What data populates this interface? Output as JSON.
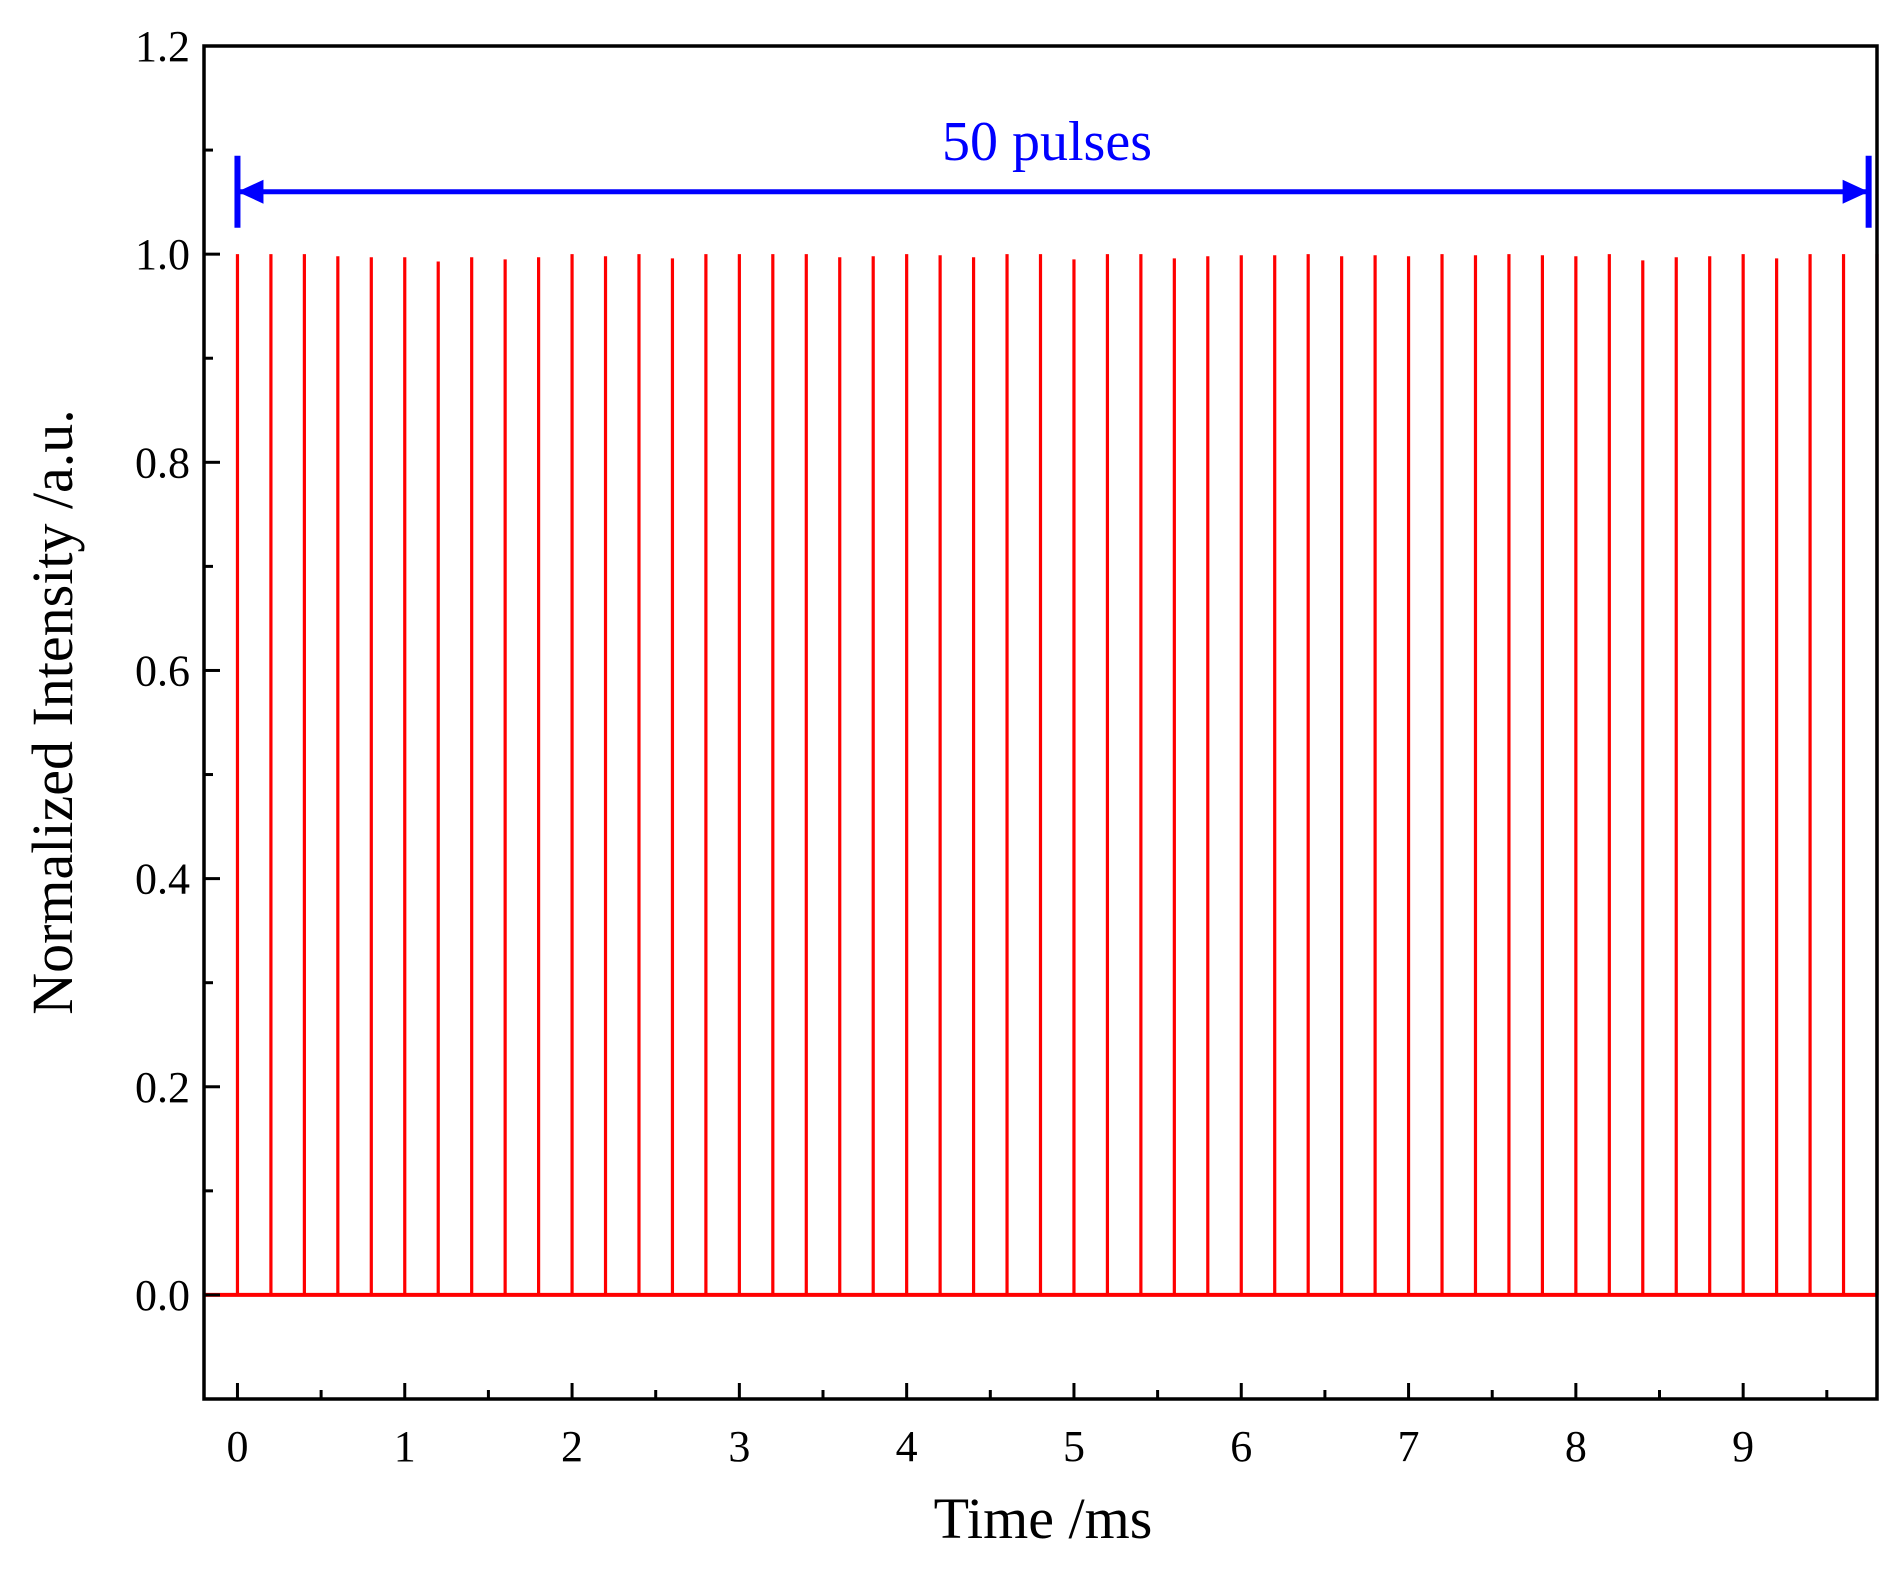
{
  "chart_data": {
    "type": "line",
    "title": "",
    "xlabel": "Time /ms",
    "ylabel": "Normalized Intensity /a.u.",
    "xlim": [
      -0.2,
      9.8
    ],
    "ylim": [
      -0.1,
      1.2
    ],
    "x_ticks": [
      0,
      1,
      2,
      3,
      4,
      5,
      6,
      7,
      8,
      9
    ],
    "x_tick_labels": [
      "0",
      "1",
      "2",
      "3",
      "4",
      "5",
      "6",
      "7",
      "8",
      "9"
    ],
    "y_ticks": [
      0.0,
      0.2,
      0.4,
      0.6,
      0.8,
      1.0,
      1.2
    ],
    "y_tick_labels": [
      "0.0",
      "0.2",
      "0.4",
      "0.6",
      "0.8",
      "1.0",
      "1.2"
    ],
    "grid": false,
    "legend": "none",
    "series": [
      {
        "color": "#ff0000",
        "baseline": 0.0,
        "pulse_period_ms": 0.2,
        "pulse_times": [
          0.0,
          0.2,
          0.4,
          0.6,
          0.8,
          1.0,
          1.2,
          1.4,
          1.6,
          1.8,
          2.0,
          2.2,
          2.4,
          2.6,
          2.8,
          3.0,
          3.2,
          3.4,
          3.6,
          3.8,
          4.0,
          4.2,
          4.4,
          4.6,
          4.8,
          5.0,
          5.2,
          5.4,
          5.6,
          5.8,
          6.0,
          6.2,
          6.4,
          6.6,
          6.8,
          7.0,
          7.2,
          7.4,
          7.6,
          7.8,
          8.0,
          8.2,
          8.4,
          8.6,
          8.8,
          9.0,
          9.2,
          9.4,
          9.6,
          9.8
        ],
        "pulse_peaks": [
          1.0,
          1.0,
          1.0,
          0.998,
          0.997,
          0.997,
          0.993,
          0.997,
          0.995,
          0.997,
          1.0,
          0.998,
          1.0,
          0.996,
          1.0,
          1.0,
          1.0,
          1.0,
          0.997,
          0.998,
          1.0,
          0.999,
          0.997,
          1.0,
          1.0,
          0.995,
          1.0,
          1.0,
          0.996,
          0.998,
          0.999,
          0.999,
          1.0,
          0.998,
          0.999,
          0.998,
          1.0,
          0.999,
          1.0,
          0.999,
          0.998,
          1.0,
          0.994,
          0.997,
          0.998,
          1.0,
          0.996,
          1.0,
          1.0,
          1.0
        ]
      }
    ],
    "annotations": [
      {
        "text": "50 pulses",
        "color": "#0000ff",
        "y": 1.06,
        "x_start": 0.0,
        "x_end": 9.75
      }
    ]
  }
}
